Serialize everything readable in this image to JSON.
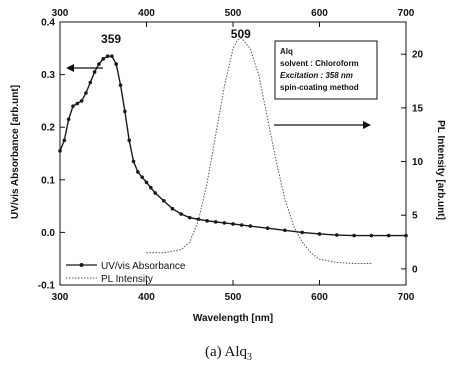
{
  "chart_data": {
    "type": "line",
    "xlabel": "Wavelength [nm]",
    "ylabel_left": "UV/vis Absorbance [arb.unt]",
    "ylabel_right": "PL Intensity [arb.unt]",
    "xlim": [
      300,
      700
    ],
    "ylim_left": [
      -0.1,
      0.4
    ],
    "ylim_right": [
      -1.5,
      23
    ],
    "x_ticks": [
      "300",
      "400",
      "500",
      "600",
      "700"
    ],
    "y_ticks_left": [
      "-0.1",
      "0.0",
      "0.1",
      "0.2",
      "0.3",
      "0.4"
    ],
    "y_ticks_right": [
      "0",
      "5",
      "10",
      "15",
      "20"
    ],
    "peak_labels": [
      {
        "text": "359",
        "x": 359,
        "y": 0.36
      },
      {
        "text": "509",
        "x": 509,
        "y": 0.37
      }
    ],
    "info_box": [
      "Alq",
      "solvent : Chloroform",
      "Excitation : 358 nm",
      "spin-coating method"
    ],
    "legend": [
      "UV/vis Absorbance",
      "PL Intensity"
    ],
    "series": [
      {
        "name": "UV/vis Absorbance",
        "axis": "left",
        "style": "line-markers",
        "x": [
          300,
          305,
          310,
          315,
          320,
          325,
          330,
          335,
          340,
          345,
          350,
          355,
          360,
          365,
          370,
          375,
          380,
          385,
          390,
          395,
          400,
          405,
          410,
          420,
          430,
          440,
          450,
          460,
          470,
          480,
          490,
          500,
          510,
          520,
          540,
          560,
          580,
          600,
          620,
          640,
          660,
          680,
          700
        ],
        "values": [
          0.155,
          0.175,
          0.215,
          0.24,
          0.245,
          0.25,
          0.265,
          0.285,
          0.305,
          0.32,
          0.33,
          0.335,
          0.335,
          0.32,
          0.28,
          0.23,
          0.175,
          0.135,
          0.115,
          0.105,
          0.095,
          0.085,
          0.075,
          0.06,
          0.045,
          0.035,
          0.028,
          0.025,
          0.022,
          0.02,
          0.018,
          0.016,
          0.014,
          0.012,
          0.008,
          0.004,
          0.0,
          -0.003,
          -0.005,
          -0.006,
          -0.006,
          -0.006,
          -0.006
        ]
      },
      {
        "name": "PL Intensity",
        "axis": "right",
        "style": "dotted",
        "x": [
          400,
          420,
          440,
          450,
          460,
          470,
          480,
          490,
          500,
          505,
          510,
          520,
          530,
          540,
          550,
          560,
          570,
          580,
          590,
          600,
          620,
          640,
          660
        ],
        "values": [
          1.5,
          1.5,
          1.8,
          2.5,
          4.5,
          8,
          12.5,
          17,
          20.5,
          21.3,
          21.5,
          20.5,
          18,
          14,
          10,
          6.5,
          4,
          2.5,
          1.5,
          0.9,
          0.6,
          0.5,
          0.5
        ]
      }
    ]
  },
  "caption": {
    "label": "(a) Alq",
    "subscript": "3"
  },
  "colors": {
    "absorbance": "#1a1a1a",
    "pl": "#555555",
    "arrows": "#111111"
  }
}
